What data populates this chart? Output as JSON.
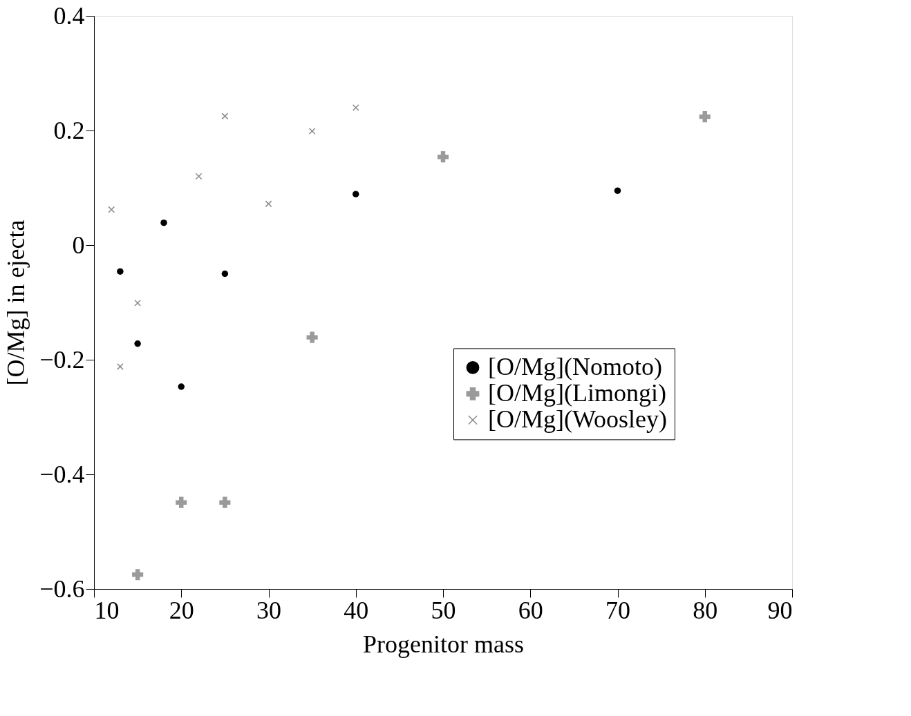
{
  "chart_data": {
    "type": "scatter",
    "xlabel": "Progenitor mass",
    "ylabel": "[O/Mg] in ejecta",
    "xlim": [
      10,
      90
    ],
    "xticks": [
      10,
      20,
      30,
      40,
      50,
      60,
      70,
      80,
      90
    ],
    "ylim": [
      -0.6,
      0.4
    ],
    "yticks": [
      -0.6,
      -0.4,
      -0.2,
      0,
      0.2,
      0.4
    ],
    "grid": false,
    "legend": "right",
    "series": [
      {
        "name": "[O/Mg](Nomoto)",
        "color": "#000000",
        "marker": "circle",
        "x": [
          13,
          15,
          18,
          20,
          25,
          40,
          70
        ],
        "values": [
          -0.046,
          -0.172,
          0.039,
          -0.247,
          -0.05,
          0.089,
          0.095
        ]
      },
      {
        "name": "[O/Mg](Limongi)",
        "color": "#9a9a9a",
        "marker": "cross",
        "x": [
          15,
          20,
          25,
          35,
          50,
          80
        ],
        "values": [
          -0.575,
          -0.449,
          -0.449,
          -0.161,
          0.154,
          0.224
        ]
      },
      {
        "name": "[O/Mg](Woosley)",
        "color": "#8a8a8a",
        "marker": "x",
        "x": [
          12,
          13,
          15,
          22,
          25,
          30,
          35,
          40
        ],
        "values": [
          0.062,
          -0.212,
          -0.101,
          0.12,
          0.225,
          0.072,
          0.199,
          0.24
        ]
      }
    ]
  }
}
